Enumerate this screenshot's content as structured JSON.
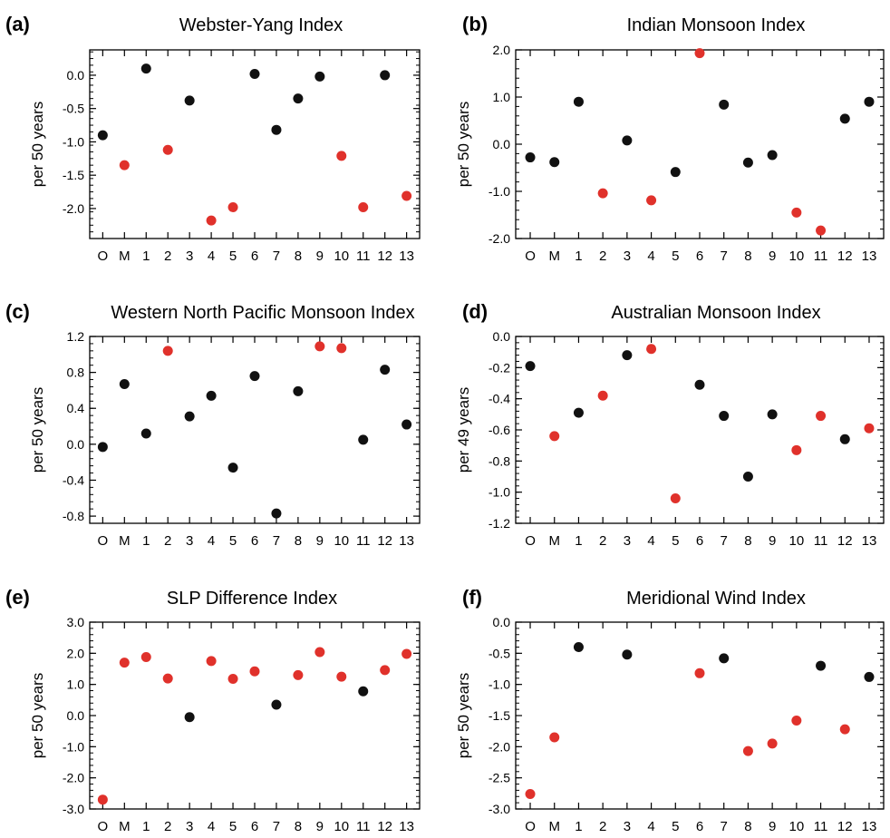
{
  "chart_data": [
    {
      "type": "scatter",
      "label": "(a)",
      "title": "Webster-Yang Index",
      "ylabel": "per 50 years",
      "categories": [
        "O",
        "M",
        "1",
        "2",
        "3",
        "4",
        "5",
        "6",
        "7",
        "8",
        "9",
        "10",
        "11",
        "12",
        "13"
      ],
      "values": [
        -0.9,
        -1.35,
        0.1,
        -1.12,
        -0.38,
        -2.18,
        -1.98,
        0.02,
        -0.82,
        -0.35,
        -0.02,
        -1.21,
        -1.98,
        0.0,
        -1.81
      ],
      "colors": [
        "black",
        "red",
        "black",
        "red",
        "black",
        "red",
        "red",
        "black",
        "black",
        "black",
        "black",
        "red",
        "red",
        "black",
        "red"
      ],
      "yticks": [
        0.0,
        -0.5,
        -1.0,
        -1.5,
        -2.0
      ],
      "ytick_labels": [
        "0.0",
        "-0.5",
        "-1.0",
        "-1.5",
        "-2.0"
      ],
      "ylim": [
        -2.45,
        0.38
      ]
    },
    {
      "type": "scatter",
      "label": "(b)",
      "title": "Indian Monsoon Index",
      "ylabel": "per 50 years",
      "categories": [
        "O",
        "M",
        "1",
        "2",
        "3",
        "4",
        "5",
        "6",
        "7",
        "8",
        "9",
        "10",
        "11",
        "12",
        "13"
      ],
      "values": [
        -0.28,
        -0.38,
        0.9,
        -1.04,
        0.08,
        -1.19,
        -0.59,
        1.93,
        0.84,
        -0.39,
        -0.23,
        -1.45,
        -1.83,
        0.54,
        0.9
      ],
      "colors": [
        "black",
        "black",
        "black",
        "red",
        "black",
        "red",
        "black",
        "red",
        "black",
        "black",
        "black",
        "red",
        "red",
        "black",
        "black"
      ],
      "yticks": [
        2.0,
        1.0,
        0.0,
        -1.0,
        -2.0
      ],
      "ytick_labels": [
        "2.0",
        "1.0",
        "0.0",
        "-1.0",
        "-2.0"
      ],
      "ylim": [
        -2.0,
        2.0
      ]
    },
    {
      "type": "scatter",
      "label": "(c)",
      "title": "Western North Pacific Monsoon Index",
      "ylabel": "per 50 years",
      "categories": [
        "O",
        "M",
        "1",
        "2",
        "3",
        "4",
        "5",
        "6",
        "7",
        "8",
        "9",
        "10",
        "11",
        "12",
        "13"
      ],
      "values": [
        -0.03,
        0.67,
        0.12,
        1.04,
        0.31,
        0.54,
        -0.26,
        0.76,
        -0.77,
        0.59,
        1.09,
        1.07,
        0.05,
        0.83,
        0.22
      ],
      "colors": [
        "black",
        "black",
        "black",
        "red",
        "black",
        "black",
        "black",
        "black",
        "black",
        "black",
        "red",
        "red",
        "black",
        "black",
        "black"
      ],
      "yticks": [
        1.2,
        0.8,
        0.4,
        0.0,
        -0.4,
        -0.8
      ],
      "ytick_labels": [
        "1.2",
        "0.8",
        "0.4",
        "0.0",
        "-0.4",
        "-0.8"
      ],
      "ylim": [
        -0.88,
        1.2
      ]
    },
    {
      "type": "scatter",
      "label": "(d)",
      "title": "Australian Monsoon Index",
      "ylabel": "per 49 years",
      "categories": [
        "O",
        "M",
        "1",
        "2",
        "3",
        "4",
        "5",
        "6",
        "7",
        "8",
        "9",
        "10",
        "11",
        "12",
        "13"
      ],
      "values": [
        -0.19,
        -0.64,
        -0.49,
        -0.38,
        -0.12,
        -0.08,
        -1.04,
        -0.31,
        -0.51,
        -0.9,
        -0.5,
        -0.73,
        -0.51,
        -0.66,
        -0.59
      ],
      "colors": [
        "black",
        "red",
        "black",
        "red",
        "black",
        "red",
        "red",
        "black",
        "black",
        "black",
        "black",
        "red",
        "red",
        "black",
        "red"
      ],
      "yticks": [
        0.0,
        -0.2,
        -0.4,
        -0.6,
        -0.8,
        -1.0,
        -1.2
      ],
      "ytick_labels": [
        "0.0",
        "-0.2",
        "-0.4",
        "-0.6",
        "-0.8",
        "-1.0",
        "-1.2"
      ],
      "ylim": [
        -1.2,
        0.0
      ]
    },
    {
      "type": "scatter",
      "label": "(e)",
      "title": "SLP Difference Index",
      "ylabel": "per 50 years",
      "categories": [
        "O",
        "M",
        "1",
        "2",
        "3",
        "4",
        "5",
        "6",
        "7",
        "8",
        "9",
        "10",
        "11",
        "12",
        "13"
      ],
      "values": [
        -2.7,
        1.7,
        1.88,
        1.19,
        -0.05,
        1.75,
        1.18,
        1.42,
        0.35,
        1.3,
        2.04,
        1.25,
        0.78,
        1.46,
        1.98
      ],
      "colors": [
        "red",
        "red",
        "red",
        "red",
        "black",
        "red",
        "red",
        "red",
        "black",
        "red",
        "red",
        "red",
        "black",
        "red",
        "red"
      ],
      "yticks": [
        3.0,
        2.0,
        1.0,
        0.0,
        -1.0,
        -2.0,
        -3.0
      ],
      "ytick_labels": [
        "3.0",
        "2.0",
        "1.0",
        "0.0",
        "-1.0",
        "-2.0",
        "-3.0"
      ],
      "ylim": [
        -3.0,
        3.0
      ]
    },
    {
      "type": "scatter",
      "label": "(f)",
      "title": "Meridional Wind Index",
      "ylabel": "per 50 years",
      "categories": [
        "O",
        "M",
        "1",
        "2",
        "3",
        "4",
        "5",
        "6",
        "7",
        "8",
        "9",
        "10",
        "11",
        "12",
        "13"
      ],
      "values": [
        -2.76,
        -1.85,
        -0.4,
        null,
        -0.52,
        null,
        null,
        -0.82,
        -0.58,
        -2.07,
        -1.95,
        -1.58,
        -0.7,
        -1.72,
        -0.88
      ],
      "colors": [
        "red",
        "red",
        "black",
        "black",
        "black",
        "black",
        "black",
        "red",
        "black",
        "red",
        "red",
        "red",
        "black",
        "red",
        "black"
      ],
      "yticks": [
        0.0,
        -0.5,
        -1.0,
        -1.5,
        -2.0,
        -2.5,
        -3.0
      ],
      "ytick_labels": [
        "0.0",
        "-0.5",
        "-1.0",
        "-1.5",
        "-2.0",
        "-2.5",
        "-3.0"
      ],
      "ylim": [
        -3.0,
        0.0
      ]
    }
  ],
  "colors": {
    "significant": "#e0312b",
    "not_significant": "#111111",
    "axis": "#000000"
  }
}
